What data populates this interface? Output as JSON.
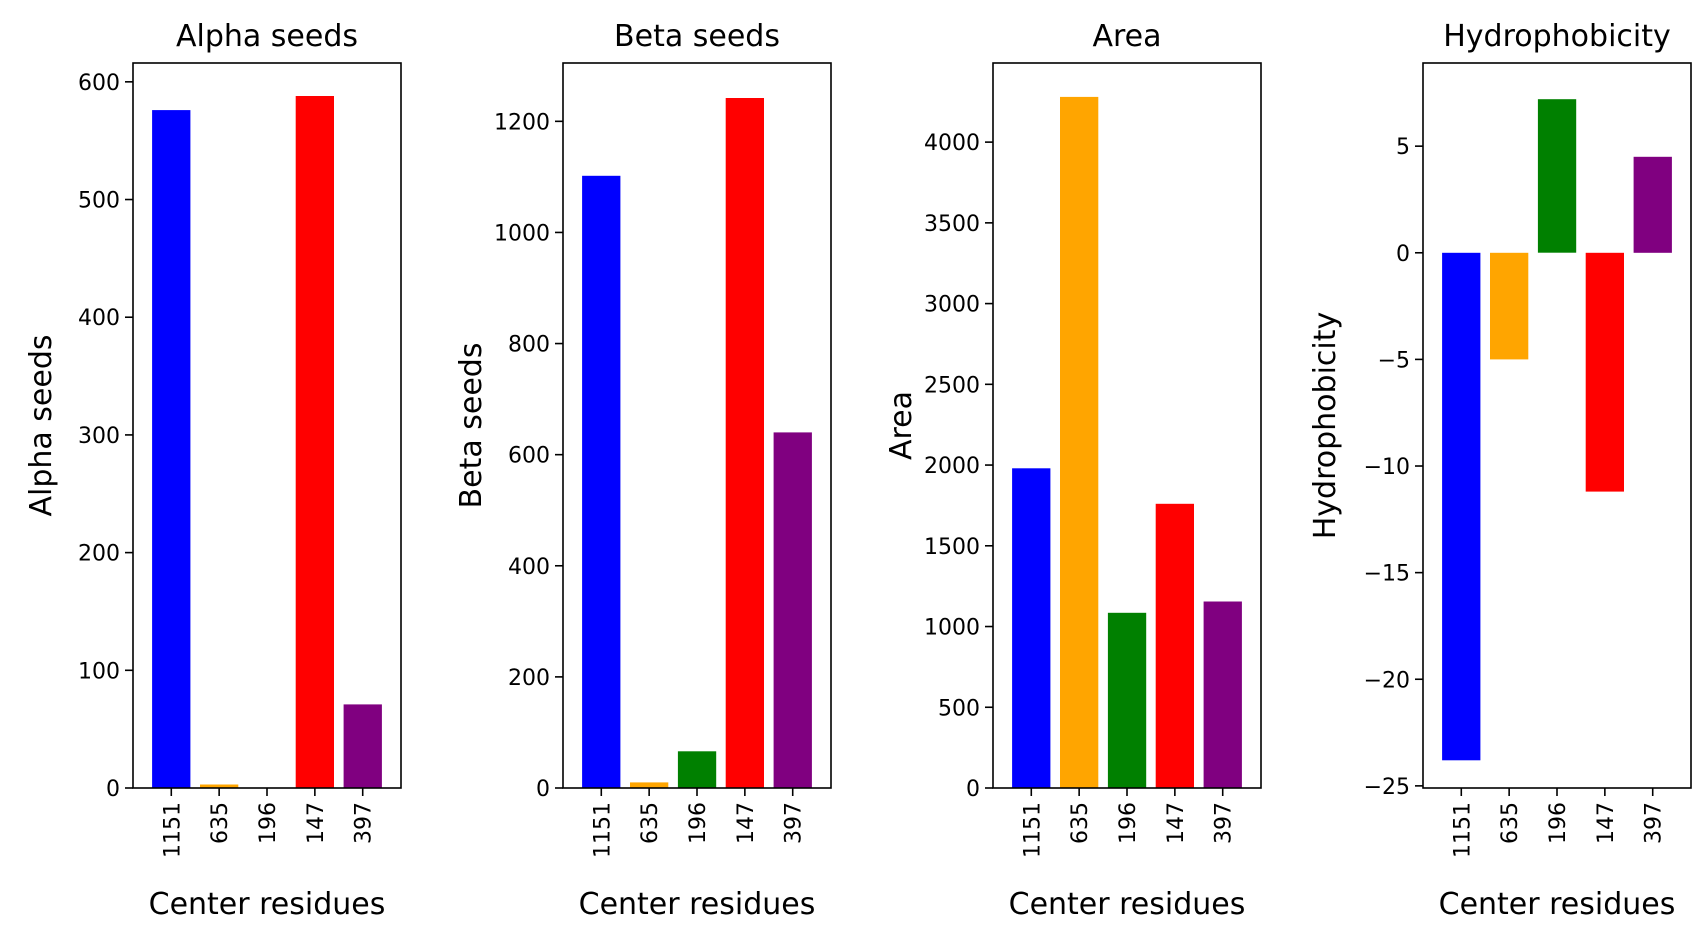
{
  "chart_data": [
    {
      "type": "bar",
      "title": "Alpha seeds",
      "xlabel": "Center residues",
      "ylabel": "Alpha seeds",
      "categories": [
        "1151",
        "635",
        "196",
        "147",
        "397"
      ],
      "values": [
        576,
        3,
        0,
        588,
        71
      ],
      "colors": [
        "#0000ff",
        "#ffa500",
        "#008000",
        "#ff0000",
        "#800080"
      ],
      "ylim": [
        0,
        616
      ],
      "yticks": [
        0,
        100,
        200,
        300,
        400,
        500,
        600
      ],
      "ytick_labels": [
        "0",
        "100",
        "200",
        "300",
        "400",
        "500",
        "600"
      ]
    },
    {
      "type": "bar",
      "title": "Beta seeds",
      "xlabel": "Center residues",
      "ylabel": "Beta seeds",
      "categories": [
        "1151",
        "635",
        "196",
        "147",
        "397"
      ],
      "values": [
        1102,
        10,
        66,
        1242,
        640
      ],
      "colors": [
        "#0000ff",
        "#ffa500",
        "#008000",
        "#ff0000",
        "#800080"
      ],
      "ylim": [
        0,
        1305
      ],
      "yticks": [
        0,
        200,
        400,
        600,
        800,
        1000,
        1200
      ],
      "ytick_labels": [
        "0",
        "200",
        "400",
        "600",
        "800",
        "1000",
        "1200"
      ]
    },
    {
      "type": "bar",
      "title": "Area",
      "xlabel": "Center residues",
      "ylabel": "Area",
      "categories": [
        "1151",
        "635",
        "196",
        "147",
        "397"
      ],
      "values": [
        1980,
        4280,
        1085,
        1760,
        1155
      ],
      "colors": [
        "#0000ff",
        "#ffa500",
        "#008000",
        "#ff0000",
        "#800080"
      ],
      "ylim": [
        0,
        4490
      ],
      "yticks": [
        0,
        500,
        1000,
        1500,
        2000,
        2500,
        3000,
        3500,
        4000
      ],
      "ytick_labels": [
        "0",
        "500",
        "1000",
        "1500",
        "2000",
        "2500",
        "3000",
        "3500",
        "4000"
      ]
    },
    {
      "type": "bar",
      "title": "Hydrophobicity",
      "xlabel": "Center residues",
      "ylabel": "Hydrophobicity",
      "categories": [
        "1151",
        "635",
        "196",
        "147",
        "397"
      ],
      "values": [
        -23.8,
        -5.0,
        7.2,
        -11.2,
        4.5
      ],
      "colors": [
        "#0000ff",
        "#ffa500",
        "#008000",
        "#ff0000",
        "#800080"
      ],
      "ylim": [
        -25.1,
        8.9
      ],
      "yticks": [
        -25,
        -20,
        -15,
        -10,
        -5,
        0,
        5
      ],
      "ytick_labels": [
        "−25",
        "−20",
        "−15",
        "−10",
        "−5",
        "0",
        "5"
      ]
    }
  ]
}
